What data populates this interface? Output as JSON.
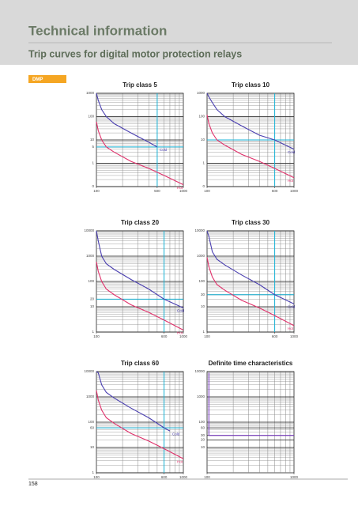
{
  "header": {
    "title": "Technical information",
    "subtitle": "Trip curves for digital motor protection relays"
  },
  "tag": "DMP",
  "page_number": "158",
  "charts": [
    {
      "type": "line",
      "title": "Trip class 5",
      "log": true,
      "xlim": [
        100,
        1000
      ],
      "xticks": [
        100,
        500,
        1000
      ],
      "ylim": [
        0.1,
        1000
      ],
      "yticks": [
        1000,
        100,
        10,
        5,
        1,
        {
          "value": 0.1,
          "label": "0"
        }
      ],
      "reference": {
        "x": 500,
        "y": 5,
        "color": "#19b5d8"
      },
      "series": [
        {
          "name": "Cold",
          "color": "#4a3fb0",
          "x": [
            100,
            105,
            115,
            130,
            160,
            250,
            400,
            500
          ],
          "y": [
            1000,
            500,
            200,
            100,
            50,
            20,
            8,
            5
          ]
        },
        {
          "name": "Hot",
          "color": "#e0306a",
          "x": [
            100,
            105,
            115,
            130,
            160,
            250,
            400,
            600,
            1000
          ],
          "y": [
            60,
            25,
            10,
            5,
            3,
            1.2,
            0.6,
            0.3,
            0.12
          ]
        }
      ]
    },
    {
      "type": "line",
      "title": "Trip class 10",
      "log": true,
      "xlim": [
        100,
        1000
      ],
      "xticks": [
        100,
        600,
        1000
      ],
      "ylim": [
        0.1,
        1000
      ],
      "yticks": [
        1000,
        100,
        10,
        1,
        {
          "value": 0.1,
          "label": "0"
        }
      ],
      "reference": {
        "x": 600,
        "y": 10,
        "color": "#19b5d8"
      },
      "series": [
        {
          "name": "Cold",
          "color": "#4a3fb0",
          "x": [
            100,
            105,
            115,
            130,
            160,
            250,
            400,
            600,
            1000
          ],
          "y": [
            1000,
            700,
            400,
            200,
            100,
            40,
            16,
            10,
            4
          ]
        },
        {
          "name": "Hot",
          "color": "#e0306a",
          "x": [
            100,
            105,
            115,
            130,
            160,
            250,
            400,
            600,
            1000
          ],
          "y": [
            120,
            50,
            20,
            10,
            6,
            2.4,
            1.2,
            0.6,
            0.24
          ]
        }
      ]
    },
    {
      "type": "line",
      "title": "Trip class 20",
      "log": true,
      "xlim": [
        100,
        1000
      ],
      "xticks": [
        100,
        600,
        1000
      ],
      "ylim": [
        1,
        10000
      ],
      "yticks": [
        10000,
        1000,
        100,
        20,
        10,
        1
      ],
      "reference": {
        "x": 600,
        "y": 20,
        "color": "#19b5d8"
      },
      "series": [
        {
          "name": "Cold",
          "color": "#4a3fb0",
          "x": [
            100,
            105,
            115,
            130,
            160,
            250,
            400,
            600,
            1000
          ],
          "y": [
            10000,
            4000,
            1000,
            500,
            300,
            120,
            50,
            20,
            9
          ]
        },
        {
          "name": "Hot",
          "color": "#e0306a",
          "x": [
            100,
            105,
            115,
            130,
            160,
            250,
            400,
            600,
            1000
          ],
          "y": [
            600,
            250,
            100,
            50,
            30,
            12,
            6,
            3,
            1.2
          ]
        }
      ]
    },
    {
      "type": "line",
      "title": "Trip class 30",
      "log": true,
      "xlim": [
        100,
        1000
      ],
      "xticks": [
        100,
        600,
        1000
      ],
      "ylim": [
        1,
        10000
      ],
      "yticks": [
        10000,
        1000,
        100,
        30,
        10,
        1
      ],
      "reference": {
        "x": 600,
        "y": 30,
        "color": "#19b5d8"
      },
      "series": [
        {
          "name": "Cold",
          "color": "#4a3fb0",
          "x": [
            100,
            105,
            115,
            130,
            160,
            250,
            400,
            600,
            1000
          ],
          "y": [
            10000,
            6000,
            1500,
            750,
            450,
            180,
            75,
            30,
            13
          ]
        },
        {
          "name": "Hot",
          "color": "#e0306a",
          "x": [
            100,
            105,
            115,
            130,
            160,
            250,
            400,
            600,
            1000
          ],
          "y": [
            900,
            380,
            150,
            75,
            45,
            18,
            9,
            4.5,
            1.8
          ]
        }
      ]
    },
    {
      "type": "line",
      "title": "Trip class 60",
      "log": true,
      "xlim": [
        100,
        1000
      ],
      "xticks": [
        100,
        600,
        1000
      ],
      "ylim": [
        1,
        10000
      ],
      "yticks": [
        10000,
        1000,
        100,
        60,
        10,
        1
      ],
      "reference": {
        "x": 600,
        "y": 60,
        "color": "#19b5d8"
      },
      "series": [
        {
          "name": "Cold",
          "color": "#4a3fb0",
          "x": [
            100,
            105,
            115,
            130,
            160,
            250,
            400,
            600,
            700
          ],
          "y": [
            10000,
            9000,
            3000,
            1500,
            900,
            360,
            150,
            60,
            45
          ]
        },
        {
          "name": "Hot",
          "color": "#e0306a",
          "x": [
            100,
            105,
            115,
            130,
            160,
            250,
            400,
            600,
            1000
          ],
          "y": [
            1800,
            750,
            300,
            150,
            90,
            36,
            18,
            9,
            3.6
          ]
        }
      ]
    },
    {
      "type": "line",
      "title": "Definite time  characteristics",
      "log": true,
      "xlim": [
        100,
        1000
      ],
      "xticks": [
        100,
        1000
      ],
      "ylim": [
        1,
        10000
      ],
      "yticks": [
        10000,
        1000,
        100,
        60,
        30,
        20,
        10
      ],
      "series": [
        {
          "color": "#7a3fc0",
          "x": [
            105,
            105,
            1000
          ],
          "y": [
            9000,
            30,
            30
          ]
        }
      ]
    }
  ]
}
